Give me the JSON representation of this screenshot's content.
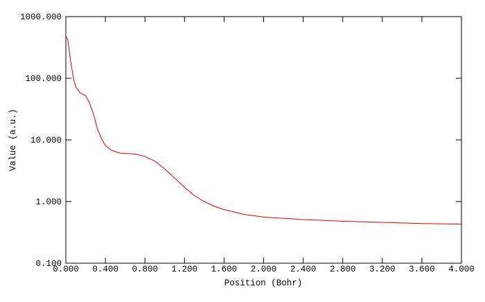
{
  "chart_data": {
    "type": "line",
    "x_label": "Position (Bohr)",
    "y_label": "Value (a.u.)",
    "y_log": true,
    "xlim": [
      0,
      4
    ],
    "ylim": [
      0.1,
      1000
    ],
    "xticks": [
      {
        "value": 0,
        "label": "0.000"
      },
      {
        "value": 0.4,
        "label": "0.400"
      },
      {
        "value": 0.8,
        "label": "0.800"
      },
      {
        "value": 1.2,
        "label": "1.200"
      },
      {
        "value": 1.6,
        "label": "1.600"
      },
      {
        "value": 2.0,
        "label": "2.000"
      },
      {
        "value": 2.4,
        "label": "2.400"
      },
      {
        "value": 2.8,
        "label": "2.800"
      },
      {
        "value": 3.2,
        "label": "3.200"
      },
      {
        "value": 3.6,
        "label": "3.600"
      },
      {
        "value": 4.0,
        "label": "4.000"
      }
    ],
    "yticks": [
      {
        "value": 0.1,
        "label": "0.100"
      },
      {
        "value": 1,
        "label": "1.000"
      },
      {
        "value": 10,
        "label": "10.000"
      },
      {
        "value": 100,
        "label": "100.000"
      },
      {
        "value": 1000,
        "label": "1000.000"
      }
    ],
    "x": [
      0,
      0.02,
      0.05,
      0.08,
      0.1,
      0.14,
      0.2,
      0.24,
      0.28,
      0.32,
      0.36,
      0.4,
      0.46,
      0.55,
      0.7,
      0.8,
      0.9,
      1.0,
      1.1,
      1.2,
      1.3,
      1.4,
      1.5,
      1.6,
      1.8,
      2.0,
      2.4,
      2.8,
      3.2,
      3.6,
      4.0
    ],
    "series": [
      {
        "color": "#e00000",
        "values": [
          480,
          420,
          182,
          95,
          73,
          59,
          52,
          40,
          26,
          15,
          10.5,
          8.1,
          6.8,
          6.1,
          5.9,
          5.4,
          4.5,
          3.4,
          2.4,
          1.7,
          1.25,
          1.0,
          0.84,
          0.74,
          0.62,
          0.56,
          0.51,
          0.48,
          0.46,
          0.44,
          0.43
        ]
      }
    ]
  }
}
